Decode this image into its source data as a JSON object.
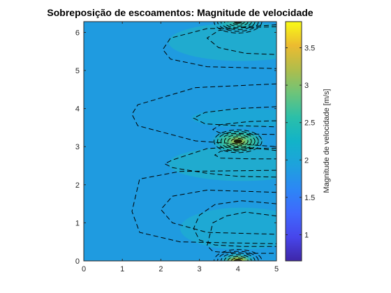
{
  "chart_data": {
    "type": "contour",
    "title": "Sobreposição de escoamentos: Magnitude de velocidade",
    "xlabel": "",
    "ylabel": "",
    "xlim": [
      0,
      5
    ],
    "ylim": [
      0,
      6.2832
    ],
    "x_ticks": [
      "0",
      "1",
      "2",
      "3",
      "4",
      "5"
    ],
    "y_ticks": [
      "0",
      "1",
      "2",
      "3",
      "4",
      "5",
      "6"
    ],
    "colorbar": {
      "label": "Magnitude de velocidade [m/s]",
      "range": [
        0.65,
        3.85
      ],
      "ticks": [
        "1",
        "1.5",
        "2",
        "2.5",
        "3",
        "3.5"
      ],
      "colormap": "parula"
    },
    "field": {
      "description_free_stream_speed": 2.0,
      "singularities_x": 4.0,
      "singularities_y": [
        0,
        3.1416,
        6.2832
      ]
    },
    "contours": [
      {
        "x": [
          5.0,
          4.2,
          3.7,
          3.35,
          3.2,
          3.35,
          3.7,
          4.2,
          5.0
        ],
        "y": [
          1.18,
          1.28,
          1.18,
          1.0,
          0.4,
          0.25,
          0.22,
          0.2,
          0.2
        ]
      },
      {
        "x": [
          5.0,
          4.1,
          3.4,
          3.0,
          2.85,
          3.0,
          3.4,
          4.1,
          5.0
        ],
        "y": [
          1.5,
          1.58,
          1.48,
          1.2,
          0.85,
          0.55,
          0.42,
          0.38,
          0.38
        ]
      },
      {
        "x": [
          5.0,
          3.2,
          2.3,
          2.0,
          2.3,
          3.2,
          5.0
        ],
        "y": [
          1.8,
          1.86,
          1.7,
          1.35,
          1.0,
          0.75,
          0.7
        ]
      },
      {
        "x": [
          5.0,
          2.5,
          1.45,
          1.25,
          1.45,
          2.5,
          5.0
        ],
        "y": [
          2.38,
          2.35,
          2.15,
          1.3,
          0.75,
          0.5,
          0.45
        ]
      },
      {
        "x": [
          5.0,
          4.0,
          3.2,
          2.3,
          2.1,
          2.3,
          3.2,
          4.0,
          5.0
        ],
        "y": [
          2.9,
          3.0,
          2.95,
          2.65,
          2.55,
          2.45,
          2.3,
          2.22,
          2.2
        ]
      },
      {
        "x": [
          5.0,
          2.9,
          1.4,
          1.25,
          1.4,
          2.9,
          5.0
        ],
        "y": [
          4.65,
          4.55,
          4.1,
          3.85,
          3.55,
          3.15,
          3.0
        ]
      },
      {
        "x": [
          5.0,
          3.2,
          2.25,
          2.05,
          2.25,
          3.2,
          5.0
        ],
        "y": [
          6.15,
          6.1,
          5.85,
          5.55,
          5.3,
          5.1,
          5.05
        ]
      },
      {
        "x": [
          5.0,
          4.2,
          3.5,
          3.2,
          3.5,
          4.2,
          5.0
        ],
        "y": [
          6.2,
          6.15,
          6.05,
          5.85,
          5.6,
          5.45,
          5.42
        ]
      },
      {
        "x": [
          5.0,
          4.0,
          3.15,
          2.85,
          3.15,
          4.0,
          5.0
        ],
        "y": [
          4.05,
          4.0,
          3.9,
          3.75,
          3.6,
          3.55,
          3.52
        ]
      },
      {
        "x": [
          5.0,
          4.3,
          3.55,
          3.35,
          3.55,
          4.3,
          5.0
        ],
        "y": [
          3.68,
          3.66,
          3.58,
          3.45,
          3.35,
          3.33,
          3.32
        ]
      },
      {
        "x": [
          5.0,
          4.3,
          3.55,
          3.4,
          3.55,
          4.3,
          5.0
        ],
        "y": [
          2.96,
          2.95,
          2.88,
          2.78,
          2.7,
          2.68,
          2.68
        ]
      }
    ]
  }
}
